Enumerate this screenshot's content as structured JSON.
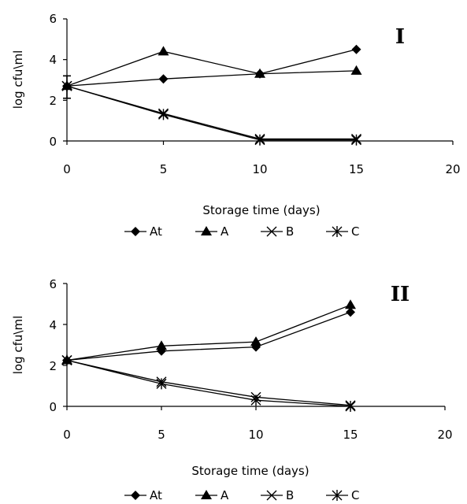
{
  "chart_data": [
    {
      "type": "line",
      "panel_label": "I",
      "xlabel": "Storage time (days)",
      "ylabel": "log cfu\\ml",
      "xlim": [
        0,
        20
      ],
      "ylim": [
        0,
        6
      ],
      "xticks": [
        "0",
        "5",
        "10",
        "15",
        "20"
      ],
      "yticks": [
        "0",
        "2",
        "4",
        "6"
      ],
      "grid": false,
      "legend_position": "bottom",
      "x": [
        0,
        5,
        10,
        15
      ],
      "series": [
        {
          "name": "At",
          "marker": "diamond",
          "values": [
            2.7,
            3.05,
            3.3,
            4.5
          ]
        },
        {
          "name": "A",
          "marker": "triangle",
          "values": [
            2.7,
            4.4,
            3.3,
            3.45
          ]
        },
        {
          "name": "B",
          "marker": "x",
          "values": [
            2.7,
            1.35,
            0.1,
            0.1
          ]
        },
        {
          "name": "C",
          "marker": "star",
          "values": [
            2.7,
            1.3,
            0.05,
            0.05
          ]
        }
      ],
      "error_bars": {
        "x": 0,
        "series": "At",
        "low": 2.1,
        "high": 3.2
      }
    },
    {
      "type": "line",
      "panel_label": "II",
      "xlabel": "Storage time (days)",
      "ylabel": "log cfu\\ml",
      "xlim": [
        0,
        20
      ],
      "ylim": [
        0,
        6
      ],
      "xticks": [
        "0",
        "5",
        "10",
        "15",
        "20"
      ],
      "yticks": [
        "0",
        "2",
        "4",
        "6"
      ],
      "grid": false,
      "legend_position": "bottom",
      "x": [
        0,
        5,
        10,
        15
      ],
      "series": [
        {
          "name": "At",
          "marker": "diamond",
          "values": [
            2.25,
            2.7,
            2.9,
            4.6
          ]
        },
        {
          "name": "A",
          "marker": "triangle",
          "values": [
            2.25,
            2.95,
            3.15,
            4.95
          ]
        },
        {
          "name": "B",
          "marker": "x",
          "values": [
            2.25,
            1.2,
            0.45,
            0.05
          ]
        },
        {
          "name": "C",
          "marker": "star",
          "values": [
            2.25,
            1.1,
            0.3,
            0.0
          ]
        }
      ]
    }
  ]
}
